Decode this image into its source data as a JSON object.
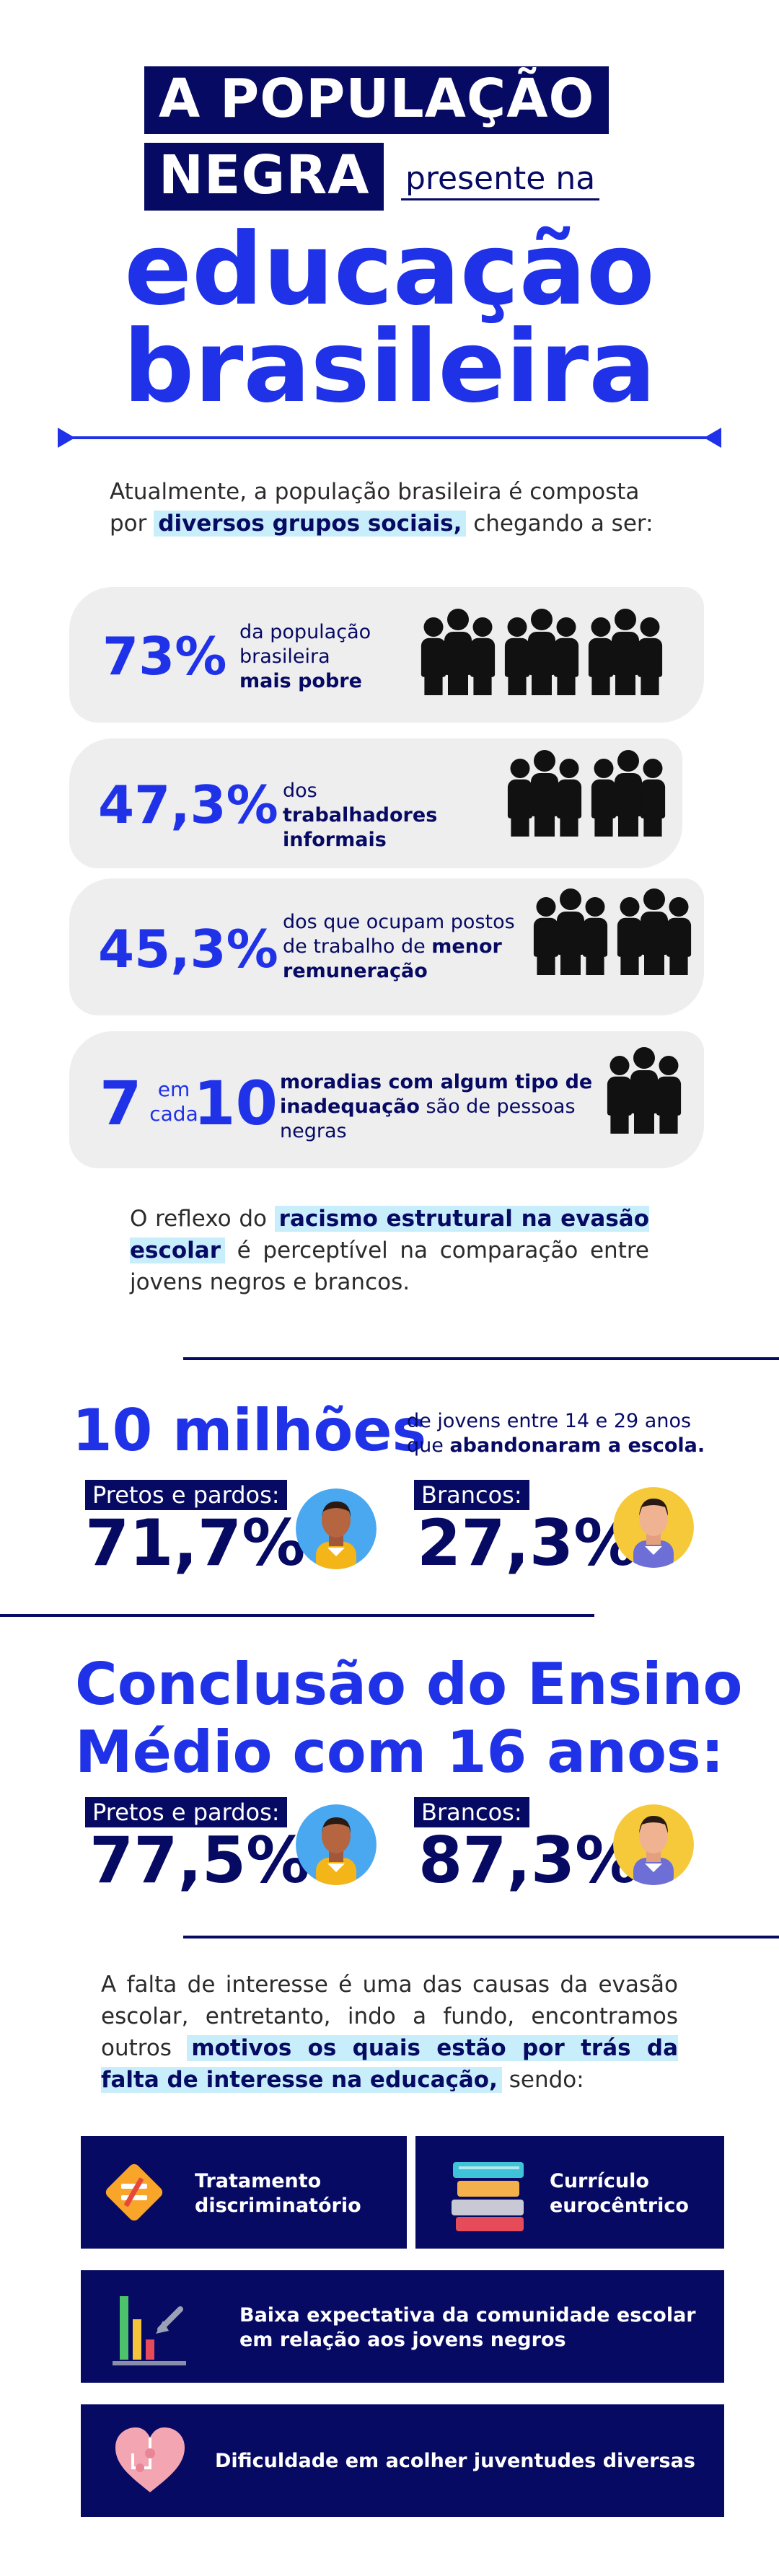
{
  "title": {
    "line1": "A POPULAÇÃO",
    "line2": "NEGRA",
    "line2_sub": "presente na",
    "line3": "educação",
    "line4": "brasileira"
  },
  "intro": {
    "pre": "Atualmente, a população brasileira é composta por ",
    "highlight": "diversos grupos sociais,",
    "post": " chegando a ser:"
  },
  "stats": [
    {
      "value": "73%",
      "text_pre": "da população brasileira ",
      "text_bold": "mais pobre",
      "text_post": ""
    },
    {
      "value": "47,3%",
      "text_pre": "dos ",
      "text_bold": "trabalhadores informais",
      "text_post": ""
    },
    {
      "value": "45,3%",
      "text_pre": "dos que ocupam postos de trabalho de ",
      "text_bold": "menor remuneração",
      "text_post": ""
    },
    {
      "value_a": "7",
      "value_mid": "em cada",
      "value_b": "10",
      "text_pre": "",
      "text_bold": "moradias com algum tipo de inadequação",
      "text_post": " são de pessoas negras"
    }
  ],
  "reflexo": {
    "pre": "O reflexo do ",
    "highlight": "racismo estrutural na evasão escolar",
    "post": " é perceptível na comparação entre jovens negros e brancos."
  },
  "evasao": {
    "big": "10 milhões",
    "desc_pre": "de jovens entre 14 e 29 anos que ",
    "desc_bold": "abandonaram a escola.",
    "group_a_label": "Pretos e pardos:",
    "group_a_value": "71,7%",
    "group_b_label": "Brancos:",
    "group_b_value": "27,3%"
  },
  "conclusao": {
    "title_line1": "Conclusão do Ensino",
    "title_line2": "Médio com 16 anos:",
    "group_a_label": "Pretos e pardos:",
    "group_a_value": "77,5%",
    "group_b_label": "Brancos:",
    "group_b_value": "87,3%"
  },
  "falta": {
    "pre": "A falta de interesse é uma das causas da evasão escolar, entretanto, indo a fundo, encontramos outros ",
    "highlight": "motivos os quais estão por trás da falta de interesse na educação,",
    "post": " sendo:"
  },
  "reasons": [
    {
      "label": "Tratamento discriminatório",
      "icon": "not-equal-icon"
    },
    {
      "label": "Currículo eurocêntrico",
      "icon": "books-icon"
    },
    {
      "label": "Baixa expectativa da comunidade escolar em relação aos jovens negros",
      "icon": "bar-chart-down-icon"
    },
    {
      "label": "Dificuldade em acolher juventudes diversas",
      "icon": "puzzle-heart-icon"
    }
  ],
  "colors": {
    "navy": "#070a63",
    "blue": "#1f32e8",
    "highlight": "#c9eefb",
    "card": "#eeeeee"
  }
}
